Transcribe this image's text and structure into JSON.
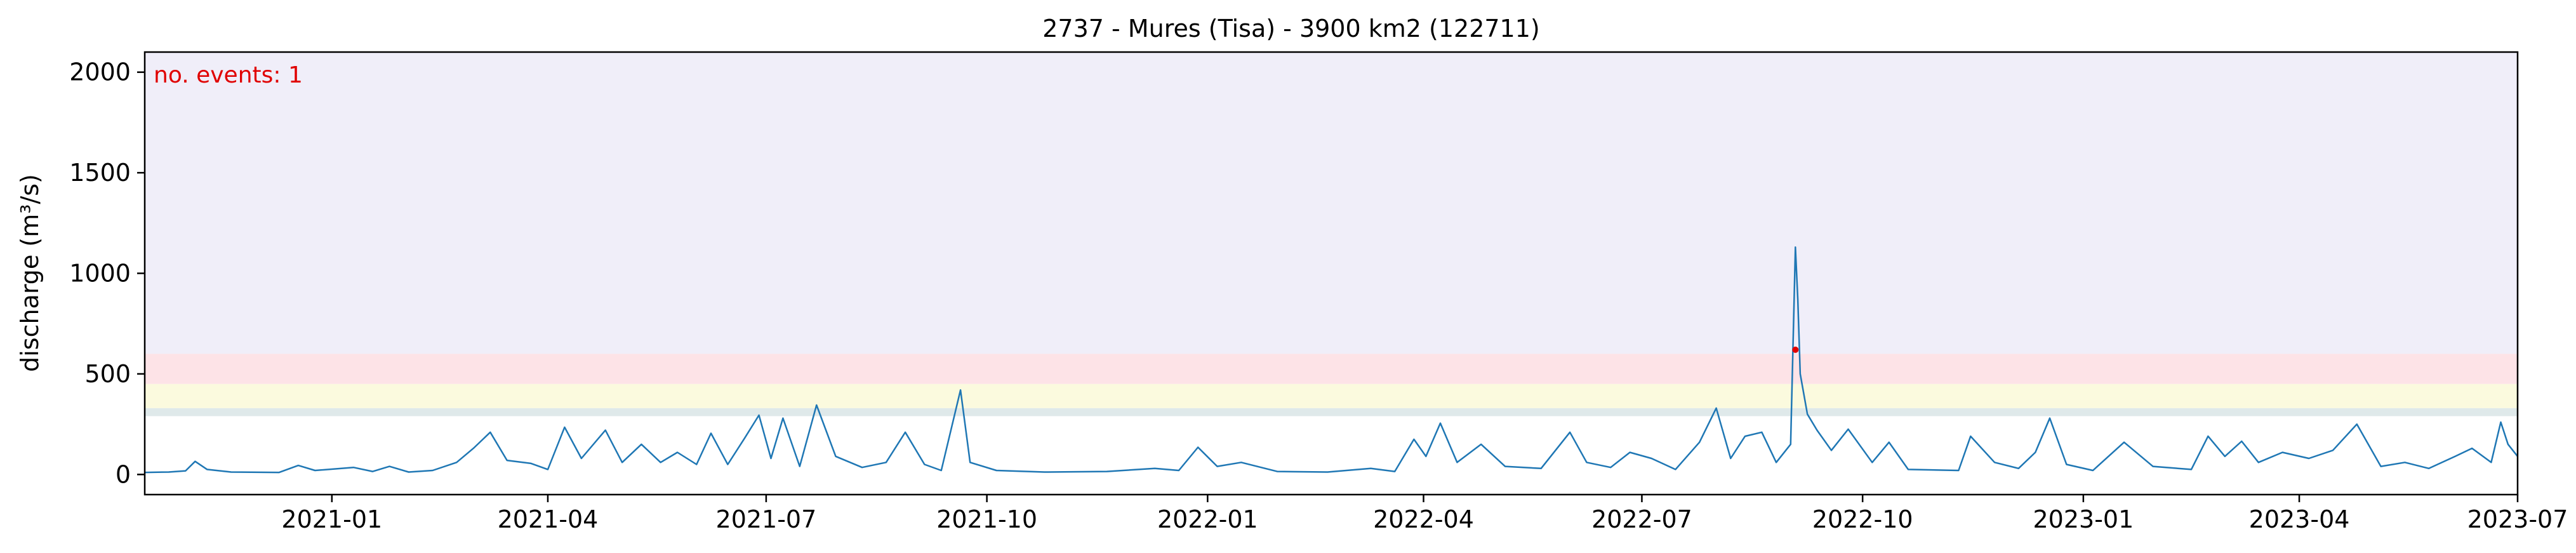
{
  "chart_data": {
    "type": "line",
    "title": "2737 - Mures (Tisa) - 3900 km2 (122711)",
    "xlabel": "",
    "ylabel": "discharge (m³/s)",
    "xlim": [
      "2020-10-15",
      "2023-07-01"
    ],
    "ylim": [
      -100,
      2100
    ],
    "x_ticks": [
      "2021-01",
      "2021-04",
      "2021-07",
      "2021-10",
      "2022-01",
      "2022-04",
      "2022-07",
      "2022-10",
      "2023-01",
      "2023-04",
      "2023-07"
    ],
    "y_ticks": [
      0,
      500,
      1000,
      1500,
      2000
    ],
    "grid": false,
    "legend": "none",
    "annotation": "no. events: 1",
    "annotation_color": "#e00000",
    "threshold_bands": [
      {
        "from": 290,
        "to": 330,
        "color": "#dfe9ea"
      },
      {
        "from": 330,
        "to": 450,
        "color": "#fbfade"
      },
      {
        "from": 450,
        "to": 600,
        "color": "#fde3e7"
      },
      {
        "from": 600,
        "to": 2100,
        "color": "#f0eef9"
      }
    ],
    "series": [
      {
        "color": "#1f77b4",
        "points": [
          [
            "2020-10-15",
            10
          ],
          [
            "2020-10-25",
            12
          ],
          [
            "2020-11-01",
            18
          ],
          [
            "2020-11-05",
            65
          ],
          [
            "2020-11-10",
            25
          ],
          [
            "2020-11-20",
            12
          ],
          [
            "2020-12-10",
            10
          ],
          [
            "2020-12-18",
            45
          ],
          [
            "2020-12-25",
            20
          ],
          [
            "2021-01-10",
            35
          ],
          [
            "2021-01-18",
            15
          ],
          [
            "2021-01-25",
            40
          ],
          [
            "2021-02-02",
            12
          ],
          [
            "2021-02-12",
            20
          ],
          [
            "2021-02-22",
            60
          ],
          [
            "2021-03-01",
            130
          ],
          [
            "2021-03-08",
            210
          ],
          [
            "2021-03-15",
            70
          ],
          [
            "2021-03-25",
            55
          ],
          [
            "2021-04-01",
            25
          ],
          [
            "2021-04-08",
            235
          ],
          [
            "2021-04-15",
            80
          ],
          [
            "2021-04-25",
            220
          ],
          [
            "2021-05-02",
            60
          ],
          [
            "2021-05-10",
            150
          ],
          [
            "2021-05-18",
            60
          ],
          [
            "2021-05-25",
            110
          ],
          [
            "2021-06-02",
            50
          ],
          [
            "2021-06-08",
            205
          ],
          [
            "2021-06-15",
            50
          ],
          [
            "2021-06-22",
            180
          ],
          [
            "2021-06-28",
            295
          ],
          [
            "2021-07-03",
            80
          ],
          [
            "2021-07-08",
            280
          ],
          [
            "2021-07-15",
            40
          ],
          [
            "2021-07-22",
            345
          ],
          [
            "2021-07-30",
            90
          ],
          [
            "2021-08-10",
            35
          ],
          [
            "2021-08-20",
            60
          ],
          [
            "2021-08-28",
            210
          ],
          [
            "2021-09-05",
            50
          ],
          [
            "2021-09-12",
            20
          ],
          [
            "2021-09-20",
            420
          ],
          [
            "2021-09-24",
            60
          ],
          [
            "2021-10-05",
            20
          ],
          [
            "2021-10-25",
            12
          ],
          [
            "2021-11-20",
            15
          ],
          [
            "2021-12-10",
            30
          ],
          [
            "2021-12-20",
            20
          ],
          [
            "2021-12-28",
            135
          ],
          [
            "2022-01-05",
            40
          ],
          [
            "2022-01-15",
            60
          ],
          [
            "2022-01-30",
            15
          ],
          [
            "2022-02-20",
            12
          ],
          [
            "2022-03-10",
            30
          ],
          [
            "2022-03-20",
            15
          ],
          [
            "2022-03-28",
            175
          ],
          [
            "2022-04-02",
            90
          ],
          [
            "2022-04-08",
            255
          ],
          [
            "2022-04-15",
            60
          ],
          [
            "2022-04-25",
            150
          ],
          [
            "2022-05-05",
            40
          ],
          [
            "2022-05-20",
            30
          ],
          [
            "2022-06-01",
            210
          ],
          [
            "2022-06-08",
            60
          ],
          [
            "2022-06-18",
            35
          ],
          [
            "2022-06-26",
            110
          ],
          [
            "2022-07-05",
            80
          ],
          [
            "2022-07-15",
            25
          ],
          [
            "2022-07-25",
            160
          ],
          [
            "2022-08-01",
            330
          ],
          [
            "2022-08-07",
            80
          ],
          [
            "2022-08-13",
            190
          ],
          [
            "2022-08-20",
            210
          ],
          [
            "2022-08-26",
            60
          ],
          [
            "2022-09-01",
            150
          ],
          [
            "2022-09-03",
            1130
          ],
          [
            "2022-09-04",
            870
          ],
          [
            "2022-09-05",
            500
          ],
          [
            "2022-09-08",
            300
          ],
          [
            "2022-09-12",
            220
          ],
          [
            "2022-09-18",
            120
          ],
          [
            "2022-09-25",
            225
          ],
          [
            "2022-10-05",
            60
          ],
          [
            "2022-10-12",
            160
          ],
          [
            "2022-10-20",
            25
          ],
          [
            "2022-11-10",
            20
          ],
          [
            "2022-11-15",
            190
          ],
          [
            "2022-11-25",
            60
          ],
          [
            "2022-12-05",
            30
          ],
          [
            "2022-12-12",
            110
          ],
          [
            "2022-12-18",
            280
          ],
          [
            "2022-12-25",
            50
          ],
          [
            "2023-01-05",
            20
          ],
          [
            "2023-01-18",
            160
          ],
          [
            "2023-01-30",
            40
          ],
          [
            "2023-02-15",
            25
          ],
          [
            "2023-02-22",
            190
          ],
          [
            "2023-03-01",
            90
          ],
          [
            "2023-03-08",
            165
          ],
          [
            "2023-03-15",
            60
          ],
          [
            "2023-03-25",
            110
          ],
          [
            "2023-04-05",
            80
          ],
          [
            "2023-04-15",
            120
          ],
          [
            "2023-04-25",
            250
          ],
          [
            "2023-05-05",
            40
          ],
          [
            "2023-05-15",
            60
          ],
          [
            "2023-05-25",
            30
          ],
          [
            "2023-06-05",
            90
          ],
          [
            "2023-06-12",
            130
          ],
          [
            "2023-06-20",
            60
          ],
          [
            "2023-06-24",
            260
          ],
          [
            "2023-06-27",
            150
          ],
          [
            "2023-07-01",
            90
          ]
        ]
      }
    ],
    "event_markers": [
      {
        "x": "2022-09-03",
        "y": 620,
        "color": "#e00000"
      }
    ]
  }
}
